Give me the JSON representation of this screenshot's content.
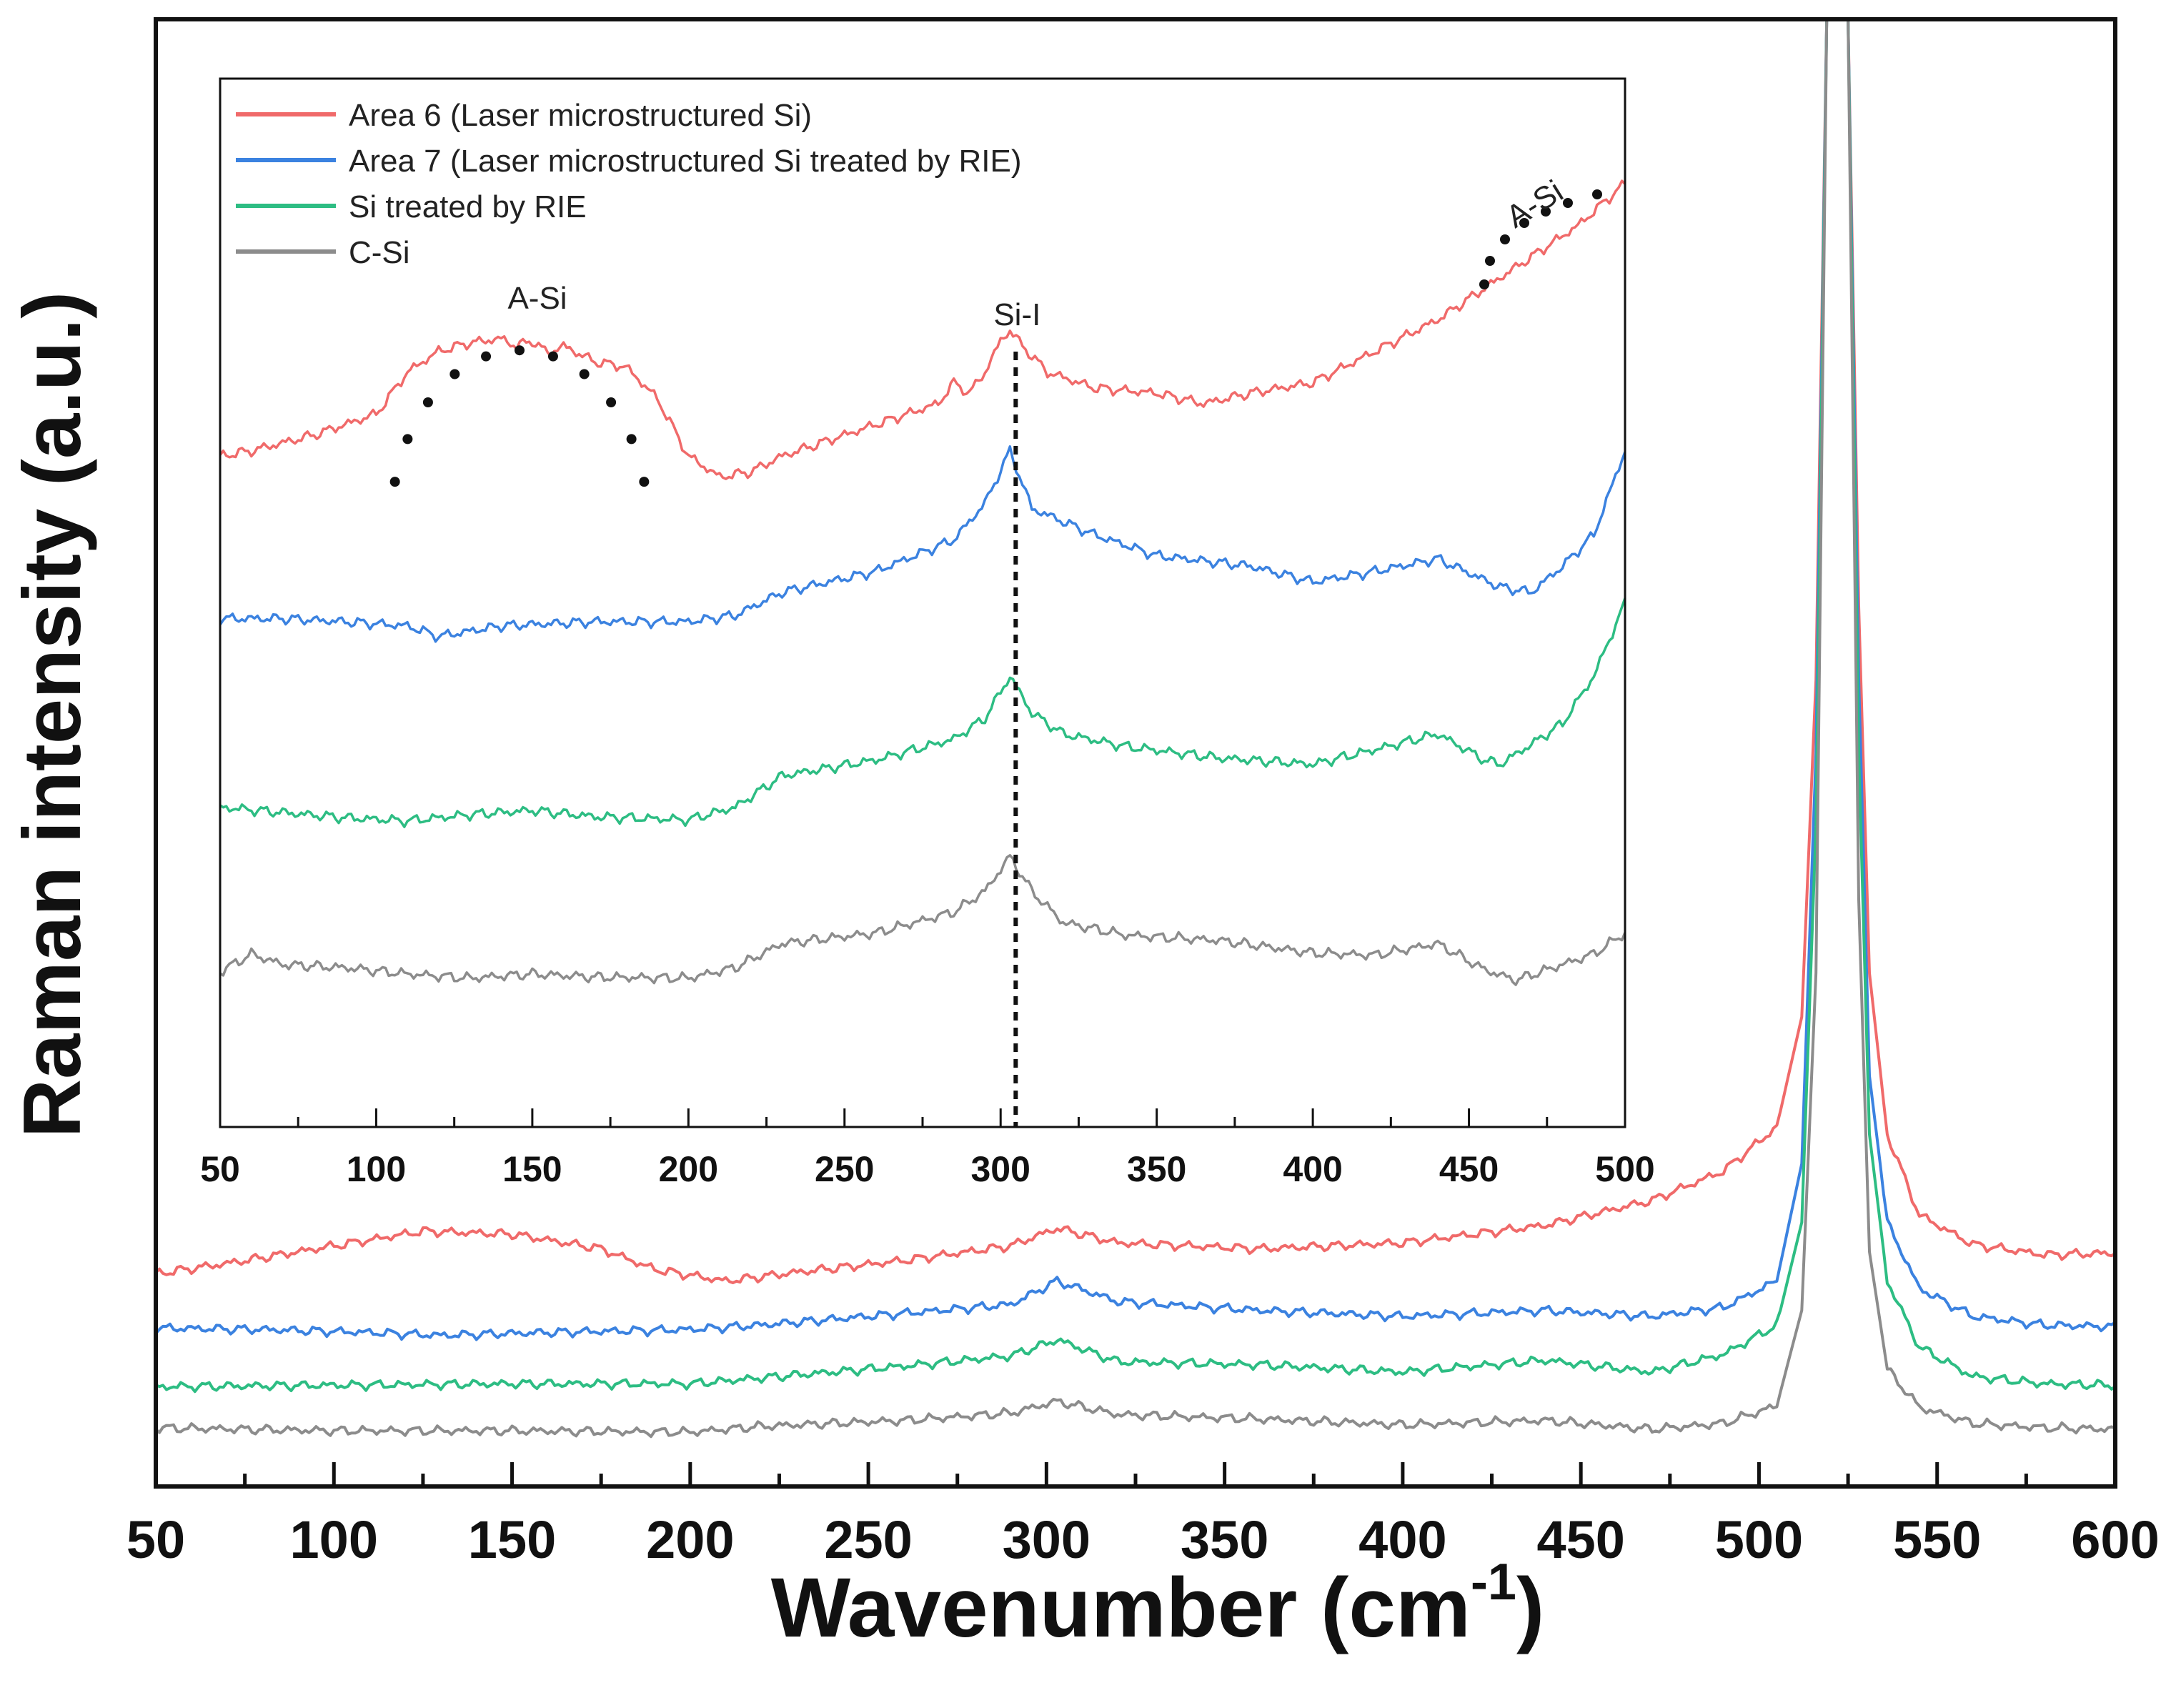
{
  "chart_data": [
    {
      "type": "line",
      "name": "main",
      "xlabel": "Wavenumber (cm",
      "xlabel_sup": "-1",
      "xlabel_close": ")",
      "ylabel": "Raman intensity (a.u.)",
      "xlim": [
        50,
        600
      ],
      "ylim": [
        0,
        100
      ],
      "x_ticks": [
        "50",
        "100",
        "150",
        "200",
        "250",
        "300",
        "350",
        "400",
        "450",
        "500",
        "550",
        "600"
      ],
      "y_ticks_visible": false,
      "series": [
        {
          "name": "Area 6 (Laser microstructured Si)",
          "color": "#f06a6a",
          "x": [
            50,
            70,
            90,
            110,
            125,
            150,
            175,
            190,
            210,
            230,
            260,
            290,
            303,
            320,
            360,
            400,
            440,
            470,
            490,
            505,
            512,
            516,
            519,
            522,
            525,
            528,
            531,
            536,
            545,
            560,
            580,
            600
          ],
          "y": [
            14.5,
            15.2,
            16.0,
            16.8,
            17.4,
            17.2,
            16.2,
            14.8,
            14.0,
            14.6,
            15.4,
            16.4,
            17.6,
            16.6,
            16.2,
            16.6,
            17.8,
            19.5,
            21.5,
            24.5,
            32,
            55,
            100,
            100,
            100,
            60,
            35,
            24,
            18.5,
            16.5,
            15.8,
            15.9
          ]
        },
        {
          "name": "Area 7 (Laser microstructured Si treated by RIE)",
          "color": "#3b82e0",
          "x": [
            50,
            80,
            110,
            130,
            160,
            200,
            220,
            260,
            290,
            303,
            320,
            360,
            400,
            440,
            470,
            490,
            505,
            512,
            516,
            519,
            522,
            525,
            528,
            531,
            536,
            545,
            560,
            580,
            600
          ],
          "y": [
            10.8,
            10.7,
            10.5,
            10.3,
            10.5,
            10.7,
            11.0,
            11.8,
            12.4,
            14.0,
            12.6,
            12.0,
            11.6,
            12.0,
            11.6,
            12.2,
            14.0,
            22,
            50,
            100,
            100,
            100,
            55,
            28,
            18,
            13.5,
            11.6,
            11.0,
            10.9
          ]
        },
        {
          "name": "Si treated by RIE",
          "color": "#2dbd83",
          "x": [
            50,
            100,
            150,
            200,
            220,
            260,
            290,
            303,
            320,
            360,
            400,
            440,
            470,
            490,
            505,
            512,
            516,
            519,
            522,
            525,
            528,
            531,
            536,
            545,
            560,
            580,
            600
          ],
          "y": [
            6.8,
            6.9,
            7.0,
            7.0,
            7.4,
            8.2,
            8.9,
            10.0,
            8.5,
            8.3,
            7.8,
            8.6,
            7.8,
            9.0,
            11.0,
            18,
            45,
            100,
            100,
            100,
            50,
            24,
            14,
            9.5,
            7.5,
            7.0,
            6.9
          ]
        },
        {
          "name": "C-Si",
          "color": "#8c8c8c",
          "x": [
            50,
            100,
            150,
            200,
            220,
            260,
            290,
            303,
            320,
            360,
            400,
            440,
            470,
            490,
            505,
            512,
            516,
            519,
            522,
            525,
            528,
            531,
            536,
            545,
            560,
            580,
            600
          ],
          "y": [
            4.0,
            3.8,
            3.8,
            3.7,
            4.1,
            4.5,
            5.0,
            5.8,
            4.9,
            4.6,
            4.2,
            4.5,
            3.9,
            4.3,
            5.5,
            12,
            35,
            100,
            100,
            100,
            40,
            16,
            8,
            5.4,
            4.3,
            4.0,
            3.9
          ]
        }
      ]
    },
    {
      "type": "line",
      "name": "inset",
      "xlim": [
        50,
        500
      ],
      "ylim": [
        0,
        100
      ],
      "x_ticks": [
        "50",
        "100",
        "150",
        "200",
        "250",
        "300",
        "350",
        "400",
        "450",
        "500"
      ],
      "legend_position": "top-left",
      "series": [
        {
          "name": "Area 6 (Laser microstructured Si)",
          "color": "#f06a6a",
          "x": [
            50,
            60,
            80,
            100,
            110,
            120,
            130,
            140,
            145,
            150,
            155,
            160,
            170,
            180,
            190,
            200,
            210,
            220,
            230,
            240,
            260,
            280,
            285,
            290,
            295,
            300,
            303,
            307,
            315,
            330,
            350,
            365,
            380,
            400,
            420,
            440,
            455,
            470,
            485,
            500
          ],
          "y": [
            64,
            64.5,
            66,
            68,
            72,
            74,
            74.8,
            75.2,
            74.5,
            75,
            73.8,
            74.5,
            73,
            72.5,
            69.5,
            64,
            62,
            62.5,
            64,
            65,
            67,
            69,
            71,
            70,
            72,
            75,
            76,
            74.5,
            72,
            70.5,
            70,
            69,
            70,
            71,
            74,
            77,
            80,
            83,
            86,
            90
          ]
        },
        {
          "name": "Area 7 (Laser microstructured Si treated by RIE)",
          "color": "#3b82e0",
          "x": [
            50,
            70,
            90,
            110,
            120,
            140,
            170,
            200,
            215,
            230,
            260,
            285,
            295,
            303,
            310,
            330,
            350,
            380,
            400,
            420,
            440,
            460,
            470,
            480,
            490,
            500
          ],
          "y": [
            48.5,
            48.5,
            48.2,
            47.8,
            46.8,
            47.8,
            48.2,
            48.2,
            48.8,
            51,
            53,
            56,
            59.5,
            64.5,
            59,
            56.5,
            54.5,
            53.5,
            52,
            53,
            54.2,
            51.5,
            51,
            53.5,
            56.5,
            64.5
          ]
        },
        {
          "name": "Si treated by RIE",
          "color": "#2dbd83",
          "x": [
            50,
            70,
            90,
            110,
            130,
            150,
            170,
            200,
            215,
            230,
            260,
            285,
            295,
            303,
            310,
            320,
            340,
            370,
            400,
            420,
            440,
            455,
            460,
            470,
            480,
            490,
            500
          ],
          "y": [
            30.5,
            30,
            29.5,
            29.2,
            29.8,
            30.2,
            29.6,
            29.3,
            30.5,
            33.5,
            35,
            37,
            39,
            43,
            39.5,
            37.5,
            36.3,
            35.2,
            34.6,
            36,
            37.5,
            35,
            34.6,
            36.5,
            38.5,
            43,
            50
          ]
        },
        {
          "name": "C-Si",
          "color": "#8c8c8c",
          "x": [
            50,
            60,
            70,
            90,
            110,
            130,
            150,
            170,
            200,
            215,
            230,
            260,
            285,
            295,
            303,
            310,
            320,
            340,
            370,
            400,
            420,
            440,
            455,
            465,
            475,
            490,
            500
          ],
          "y": [
            14.8,
            16.5,
            15.5,
            15.2,
            14.6,
            14.2,
            14.6,
            14.3,
            14.2,
            15.2,
            17.5,
            18.5,
            20.5,
            22.5,
            25.8,
            22.5,
            19.5,
            18.3,
            17.8,
            16.6,
            16.4,
            17.5,
            15,
            14,
            15,
            16.5,
            18.5
          ]
        }
      ],
      "annotations": [
        {
          "text": "A-Si",
          "kind": "arc-left",
          "x": 150
        },
        {
          "text": "Si-I",
          "kind": "vline",
          "x": 303
        },
        {
          "text": "A-Si",
          "kind": "arc-right",
          "x": 475
        }
      ]
    }
  ]
}
